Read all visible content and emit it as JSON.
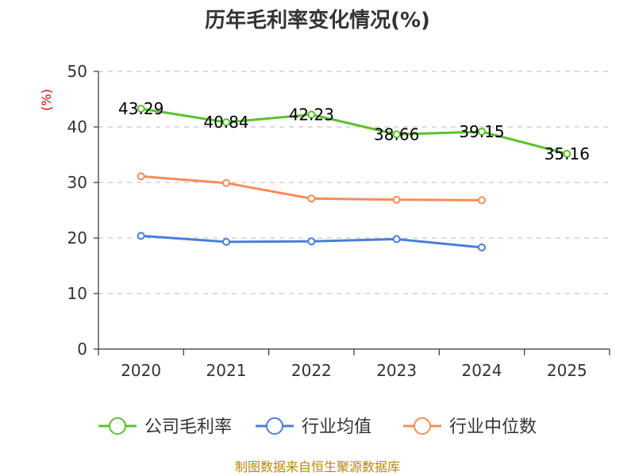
{
  "chart_data": {
    "type": "line",
    "title": "历年毛利率变化情况(%)",
    "ylabel": "(%)",
    "xlabel": "",
    "categories": [
      "2020",
      "2021",
      "2022",
      "2023",
      "2024",
      "2025"
    ],
    "ylim": [
      0,
      50
    ],
    "yticks": [
      0,
      10,
      20,
      30,
      40,
      50
    ],
    "grid": true,
    "legend_position": "bottom",
    "series": [
      {
        "name": "公司毛利率",
        "color": "#5cc12f",
        "values": [
          43.29,
          40.84,
          42.23,
          38.66,
          39.15,
          35.16
        ],
        "labels": [
          "43.29",
          "40.84",
          "42.23",
          "38.66",
          "39.15",
          "35.16"
        ]
      },
      {
        "name": "行业均值",
        "color": "#4a7fd8",
        "values": [
          20.4,
          19.3,
          19.4,
          19.8,
          18.3,
          null
        ]
      },
      {
        "name": "行业中位数",
        "color": "#f48d5a",
        "values": [
          31.1,
          29.9,
          27.1,
          26.9,
          26.8,
          null
        ]
      }
    ]
  },
  "footer": {
    "source": "制图数据来自恒生聚源数据库"
  }
}
